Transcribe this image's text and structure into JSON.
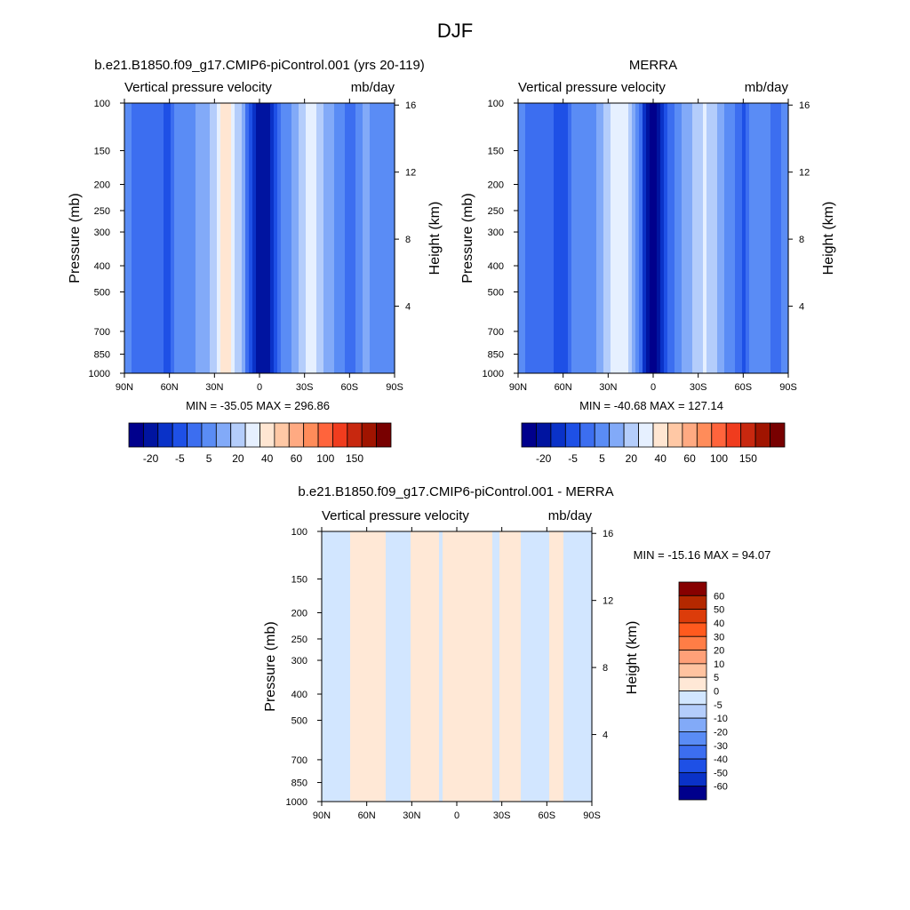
{
  "figure": {
    "title": "DJF"
  },
  "panels": [
    {
      "id": "model",
      "title": "b.e21.B1850.f09_g17.CMIP6-piControl.001 (yrs 20-119)",
      "subtitle_left": "Vertical pressure velocity",
      "subtitle_right": "mb/day",
      "ylabel_left": "Pressure (mb)",
      "ylabel_right": "Height (km)",
      "stats": "MIN = -35.05  MAX = 296.86"
    },
    {
      "id": "obs",
      "title": "MERRA",
      "subtitle_left": "Vertical pressure velocity",
      "subtitle_right": "mb/day",
      "ylabel_left": "Pressure (mb)",
      "ylabel_right": "Height (km)",
      "stats": "MIN = -40.68  MAX = 127.14"
    },
    {
      "id": "diff",
      "title": "b.e21.B1850.f09_g17.CMIP6-piControl.001 - MERRA",
      "subtitle_left": "Vertical pressure velocity",
      "subtitle_right": "mb/day",
      "ylabel_left": "Pressure (mb)",
      "ylabel_right": "Height (km)",
      "stats": "MIN = -15.16  MAX =  94.07"
    }
  ],
  "chart_data": [
    {
      "type": "heatmap",
      "title": "b.e21.B1850.f09_g17.CMIP6-piControl.001 (yrs 20-119)",
      "variable": "Vertical pressure velocity",
      "units": "mb/day",
      "x_ticks": [
        "90N",
        "60N",
        "30N",
        "0",
        "30S",
        "60S",
        "90S"
      ],
      "xlim": [
        90,
        -90
      ],
      "y_ticks": [
        100,
        150,
        200,
        250,
        300,
        400,
        500,
        700,
        850,
        1000
      ],
      "ylim": [
        1000,
        100
      ],
      "y_scale": "log",
      "height_km_ticks": [
        4,
        8,
        12,
        16
      ],
      "min": -35.05,
      "max": 296.86,
      "colorbar_levels": [
        -30,
        -25,
        -20,
        -15,
        -10,
        -5,
        0,
        5,
        10,
        20,
        30,
        40,
        50,
        60,
        80,
        100,
        125,
        150
      ],
      "colorbar_labels": [
        "-20",
        "-5",
        "5",
        "20",
        "40",
        "60",
        "100",
        "150"
      ],
      "lat_profile": [
        [
          90,
          -8
        ],
        [
          80,
          -12
        ],
        [
          75,
          -14
        ],
        [
          70,
          -10
        ],
        [
          65,
          -13
        ],
        [
          60,
          -18
        ],
        [
          55,
          -8
        ],
        [
          50,
          -5
        ],
        [
          45,
          -6
        ],
        [
          40,
          -4
        ],
        [
          35,
          -2
        ],
        [
          30,
          3
        ],
        [
          25,
          10
        ],
        [
          20,
          14
        ],
        [
          15,
          4
        ],
        [
          10,
          -6
        ],
        [
          5,
          -20
        ],
        [
          0,
          -30
        ],
        [
          -5,
          -28
        ],
        [
          -10,
          -20
        ],
        [
          -15,
          -10
        ],
        [
          -20,
          -6
        ],
        [
          -25,
          -2
        ],
        [
          -30,
          4
        ],
        [
          -35,
          8
        ],
        [
          -40,
          4
        ],
        [
          -45,
          -2
        ],
        [
          -50,
          -6
        ],
        [
          -55,
          -8
        ],
        [
          -60,
          -14
        ],
        [
          -65,
          -8
        ],
        [
          -70,
          -4
        ],
        [
          -75,
          -6
        ],
        [
          -80,
          -10
        ],
        [
          -85,
          -10
        ],
        [
          -90,
          -10
        ]
      ]
    },
    {
      "type": "heatmap",
      "title": "MERRA",
      "variable": "Vertical pressure velocity",
      "units": "mb/day",
      "x_ticks": [
        "90N",
        "60N",
        "30N",
        "0",
        "30S",
        "60S",
        "90S"
      ],
      "xlim": [
        90,
        -90
      ],
      "y_ticks": [
        100,
        150,
        200,
        250,
        300,
        400,
        500,
        700,
        850,
        1000
      ],
      "ylim": [
        1000,
        100
      ],
      "y_scale": "log",
      "height_km_ticks": [
        4,
        8,
        12,
        16
      ],
      "min": -40.68,
      "max": 127.14,
      "colorbar_levels": [
        -30,
        -25,
        -20,
        -15,
        -10,
        -5,
        0,
        5,
        10,
        20,
        30,
        40,
        50,
        60,
        80,
        100,
        125,
        150
      ],
      "colorbar_labels": [
        "-20",
        "-5",
        "5",
        "20",
        "40",
        "60",
        "100",
        "150"
      ],
      "lat_profile": [
        [
          90,
          -8
        ],
        [
          80,
          -12
        ],
        [
          75,
          -14
        ],
        [
          70,
          -10
        ],
        [
          65,
          -16
        ],
        [
          60,
          -20
        ],
        [
          55,
          -10
        ],
        [
          50,
          -6
        ],
        [
          45,
          -8
        ],
        [
          40,
          -6
        ],
        [
          35,
          -3
        ],
        [
          30,
          2
        ],
        [
          25,
          8
        ],
        [
          20,
          10
        ],
        [
          15,
          2
        ],
        [
          10,
          -8
        ],
        [
          5,
          -24
        ],
        [
          0,
          -32
        ],
        [
          -5,
          -26
        ],
        [
          -10,
          -16
        ],
        [
          -15,
          -8
        ],
        [
          -20,
          -4
        ],
        [
          -25,
          -1
        ],
        [
          -30,
          3
        ],
        [
          -35,
          6
        ],
        [
          -40,
          3
        ],
        [
          -45,
          -3
        ],
        [
          -50,
          -8
        ],
        [
          -55,
          -10
        ],
        [
          -60,
          -16
        ],
        [
          -65,
          -10
        ],
        [
          -70,
          -5
        ],
        [
          -75,
          -7
        ],
        [
          -80,
          -12
        ],
        [
          -85,
          -10
        ],
        [
          -90,
          -10
        ]
      ]
    },
    {
      "type": "heatmap",
      "title": "b.e21.B1850.f09_g17.CMIP6-piControl.001 - MERRA",
      "variable": "Vertical pressure velocity",
      "units": "mb/day",
      "x_ticks": [
        "90N",
        "60N",
        "30N",
        "0",
        "30S",
        "60S",
        "90S"
      ],
      "xlim": [
        90,
        -90
      ],
      "y_ticks": [
        100,
        150,
        200,
        250,
        300,
        400,
        500,
        700,
        850,
        1000
      ],
      "ylim": [
        1000,
        100
      ],
      "y_scale": "log",
      "height_km_ticks": [
        4,
        8,
        12,
        16
      ],
      "min": -15.16,
      "max": 94.07,
      "colorbar_levels": [
        -60,
        -50,
        -40,
        -30,
        -20,
        -10,
        -5,
        0,
        5,
        10,
        20,
        30,
        40,
        50,
        60
      ],
      "colorbar_labels": [
        "60",
        "50",
        "40",
        "30",
        "20",
        "10",
        "5",
        "0",
        "-5",
        "-10",
        "-20",
        "-30",
        "-40",
        "-50",
        "-60"
      ],
      "lat_profile": [
        [
          90,
          -3
        ],
        [
          80,
          -3
        ],
        [
          75,
          -2
        ],
        [
          70,
          1
        ],
        [
          65,
          2
        ],
        [
          60,
          2
        ],
        [
          55,
          1
        ],
        [
          50,
          1
        ],
        [
          45,
          -1
        ],
        [
          40,
          -1
        ],
        [
          35,
          -2
        ],
        [
          30,
          1
        ],
        [
          25,
          2
        ],
        [
          20,
          3
        ],
        [
          15,
          2
        ],
        [
          10,
          -1
        ],
        [
          5,
          2
        ],
        [
          0,
          1
        ],
        [
          -5,
          2
        ],
        [
          -10,
          2
        ],
        [
          -15,
          2
        ],
        [
          -20,
          1
        ],
        [
          -25,
          -1
        ],
        [
          -30,
          1
        ],
        [
          -35,
          2
        ],
        [
          -40,
          1
        ],
        [
          -45,
          -1
        ],
        [
          -50,
          -2
        ],
        [
          -55,
          -2
        ],
        [
          -60,
          -1
        ],
        [
          -65,
          2
        ],
        [
          -70,
          1
        ],
        [
          -75,
          -2
        ],
        [
          -80,
          -2
        ],
        [
          -85,
          -3
        ],
        [
          -90,
          -3
        ]
      ]
    }
  ],
  "colors": {
    "cb_main": [
      "#00008c",
      "#0014a0",
      "#0a32c8",
      "#1e50e6",
      "#3c6ef0",
      "#5a8cf5",
      "#82aaf8",
      "#b4cdfb",
      "#e6f0ff",
      "#ffe6d2",
      "#ffc8a5",
      "#ffaa82",
      "#ff8c5a",
      "#ff643c",
      "#f03c1e",
      "#c8280f",
      "#a01400",
      "#780000"
    ],
    "cb_diff": [
      "#870000",
      "#b42800",
      "#dc3c0a",
      "#ff5a1e",
      "#ff7d46",
      "#ffa078",
      "#ffc3a0",
      "#ffe8d6",
      "#d2e6ff",
      "#b4cdfb",
      "#82aaf8",
      "#5a8cf5",
      "#3c6ef0",
      "#1e50e6",
      "#0a32c8",
      "#00008c"
    ]
  }
}
